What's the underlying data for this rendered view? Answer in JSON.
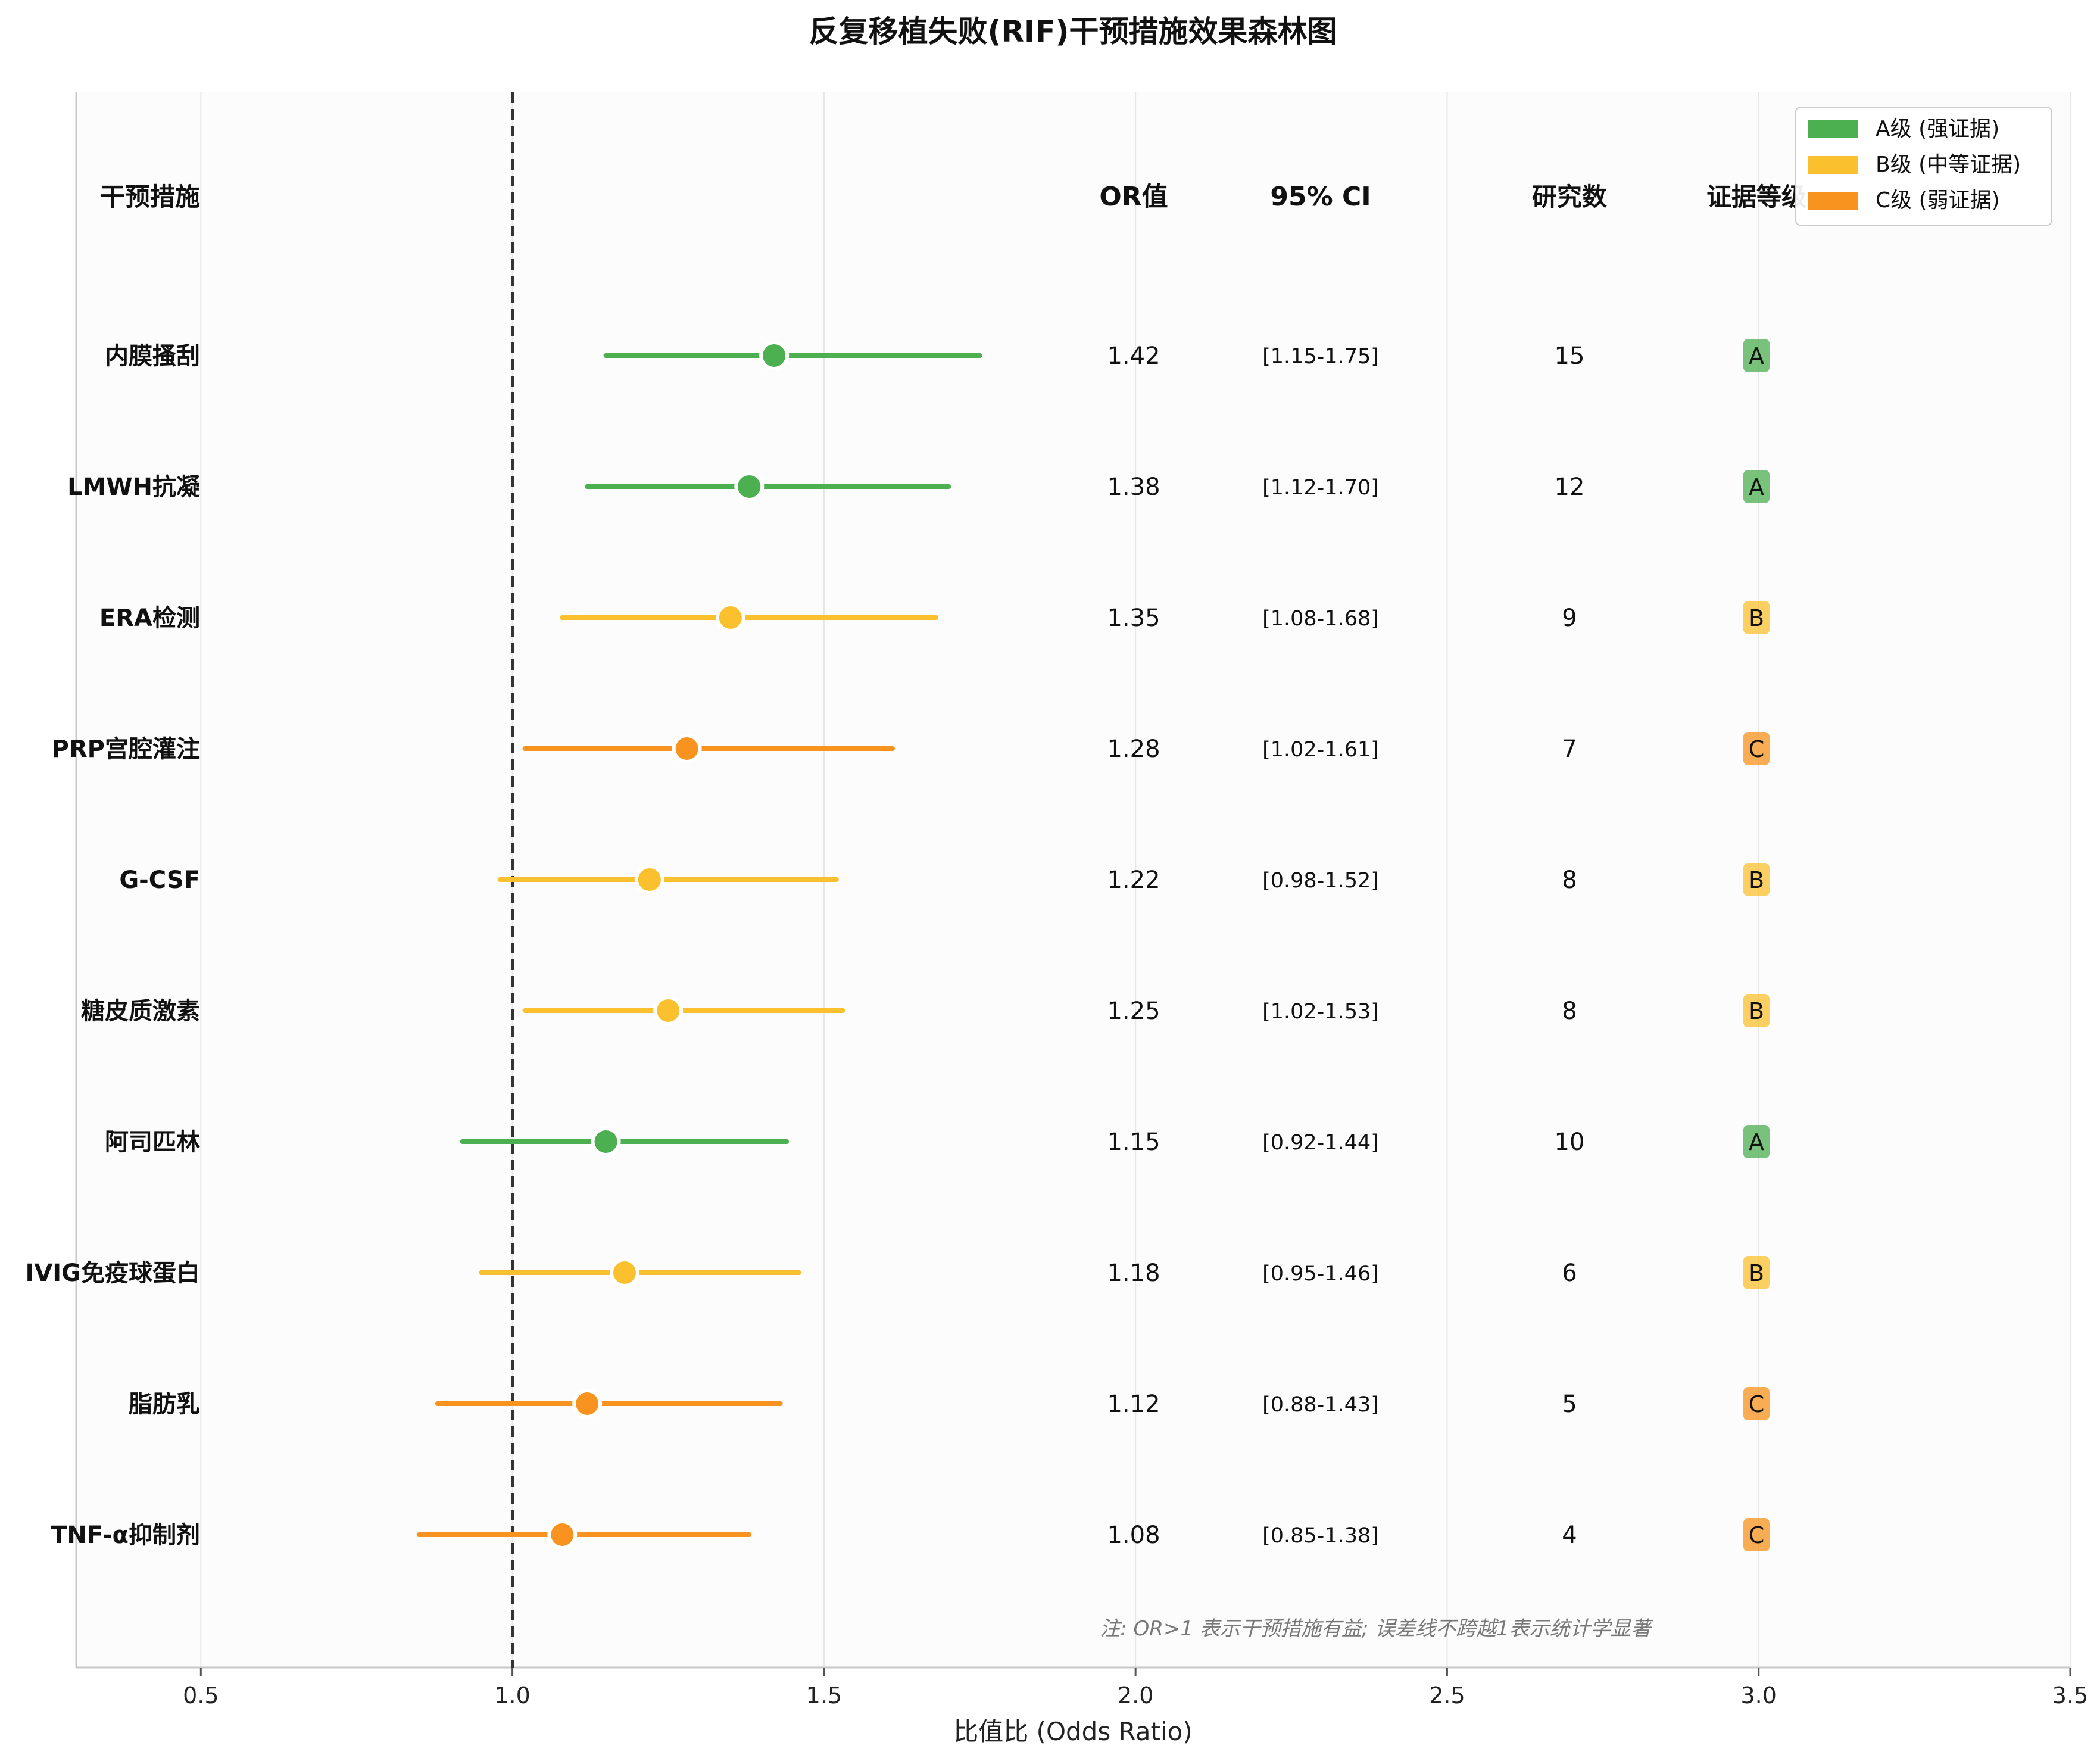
{
  "chart_data": {
    "type": "forest",
    "title": "反复移植失败(RIF)干预措施效果森林图",
    "xlabel": "比值比 (Odds Ratio)",
    "ylabel": "",
    "xlim": [
      0.3,
      3.5
    ],
    "xticks": [
      "0.5",
      "1.0",
      "1.5",
      "2.0",
      "2.5",
      "3.0",
      "3.5"
    ],
    "xtick_values": [
      0.5,
      1.0,
      1.5,
      2.0,
      2.5,
      3.0,
      3.5
    ],
    "reference_line": 1.0,
    "grid": "vertical",
    "columns": {
      "intervention": "干预措施",
      "or": "OR值",
      "ci": "95% CI",
      "studies": "研究数",
      "grade": "证据等级"
    },
    "colors": {
      "A": "#4caf50",
      "B": "#fbc02d",
      "C": "#f7931e"
    },
    "rows": [
      {
        "name": "内膜搔刮",
        "or": 1.42,
        "ci_low": 1.15,
        "ci_high": 1.75,
        "or_label": "1.42",
        "ci_label": "[1.15-1.75]",
        "studies": "15",
        "grade": "A"
      },
      {
        "name": "LMWH抗凝",
        "or": 1.38,
        "ci_low": 1.12,
        "ci_high": 1.7,
        "or_label": "1.38",
        "ci_label": "[1.12-1.70]",
        "studies": "12",
        "grade": "A"
      },
      {
        "name": "ERA检测",
        "or": 1.35,
        "ci_low": 1.08,
        "ci_high": 1.68,
        "or_label": "1.35",
        "ci_label": "[1.08-1.68]",
        "studies": "9",
        "grade": "B"
      },
      {
        "name": "PRP宫腔灌注",
        "or": 1.28,
        "ci_low": 1.02,
        "ci_high": 1.61,
        "or_label": "1.28",
        "ci_label": "[1.02-1.61]",
        "studies": "7",
        "grade": "C"
      },
      {
        "name": "G-CSF",
        "or": 1.22,
        "ci_low": 0.98,
        "ci_high": 1.52,
        "or_label": "1.22",
        "ci_label": "[0.98-1.52]",
        "studies": "8",
        "grade": "B"
      },
      {
        "name": "糖皮质激素",
        "or": 1.25,
        "ci_low": 1.02,
        "ci_high": 1.53,
        "or_label": "1.25",
        "ci_label": "[1.02-1.53]",
        "studies": "8",
        "grade": "B"
      },
      {
        "name": "阿司匹林",
        "or": 1.15,
        "ci_low": 0.92,
        "ci_high": 1.44,
        "or_label": "1.15",
        "ci_label": "[0.92-1.44]",
        "studies": "10",
        "grade": "A"
      },
      {
        "name": "IVIG免疫球蛋白",
        "or": 1.18,
        "ci_low": 0.95,
        "ci_high": 1.46,
        "or_label": "1.18",
        "ci_label": "[0.95-1.46]",
        "studies": "6",
        "grade": "B"
      },
      {
        "name": "脂肪乳",
        "or": 1.12,
        "ci_low": 0.88,
        "ci_high": 1.43,
        "or_label": "1.12",
        "ci_label": "[0.88-1.43]",
        "studies": "5",
        "grade": "C"
      },
      {
        "name": "TNF-α抑制剂",
        "or": 1.08,
        "ci_low": 0.85,
        "ci_high": 1.38,
        "or_label": "1.08",
        "ci_label": "[0.85-1.38]",
        "studies": "4",
        "grade": "C"
      }
    ],
    "legend": {
      "position": "top-right",
      "entries": [
        {
          "label": "A级 (强证据)",
          "grade": "A"
        },
        {
          "label": "B级 (中等证据)",
          "grade": "B"
        },
        {
          "label": "C级 (弱证据)",
          "grade": "C"
        }
      ]
    },
    "note": "注: OR>1 表示干预措施有益; 误差线不跨越1表示统计学显著"
  }
}
